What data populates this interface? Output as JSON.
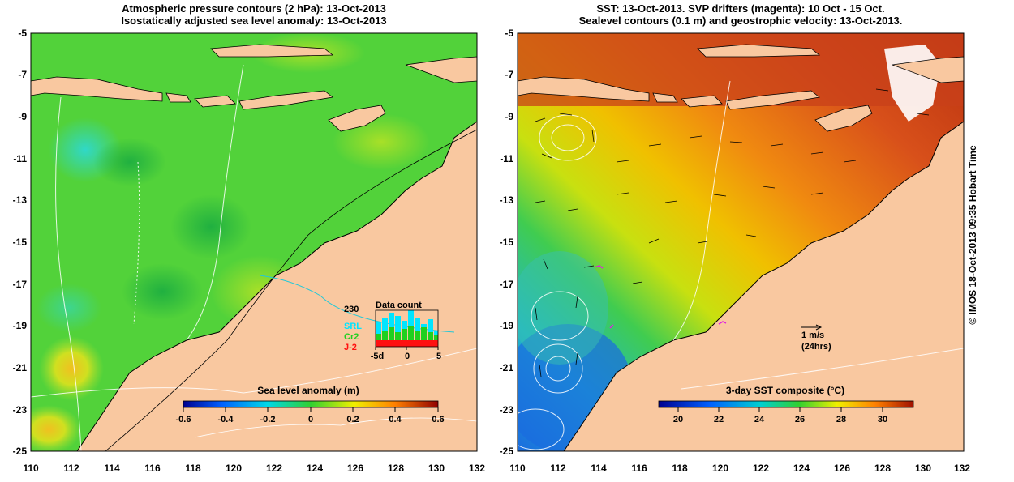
{
  "left_panel": {
    "title_line1": "Atmospheric pressure contours (2 hPa): 13-Oct-2013",
    "title_line2": "Isostatically adjusted sea level anomaly: 13-Oct-2013",
    "colorbar_title": "Sea level anomaly (m)",
    "colorbar_ticks": [
      "-0.6",
      "-0.4",
      "-0.2",
      "0",
      "0.2",
      "0.4",
      "0.6"
    ],
    "inset": {
      "title": "Data count",
      "max_label": "230",
      "satellites": [
        {
          "name": "SRL",
          "color": "#00e5ff"
        },
        {
          "name": "Cr2",
          "color": "#1fd01f"
        },
        {
          "name": "J-2",
          "color": "#ff1010"
        }
      ],
      "xticks": [
        "-5d",
        "0",
        "5"
      ]
    }
  },
  "right_panel": {
    "title_line1": "SST: 13-Oct-2013. SVP drifters (magenta): 10 Oct - 15 Oct.",
    "title_line2": "Sealevel contours (0.1 m) and geostrophic velocity: 13-Oct-2013.",
    "colorbar_title": "3-day SST composite (°C)",
    "colorbar_ticks": [
      "20",
      "22",
      "24",
      "26",
      "28",
      "30"
    ],
    "scale_label_1": "1 m/s",
    "scale_label_2": "(24hrs)"
  },
  "axes": {
    "y_ticks": [
      "-5",
      "-7",
      "-9",
      "-11",
      "-13",
      "-15",
      "-17",
      "-19",
      "-21",
      "-23",
      "-25"
    ],
    "x_ticks": [
      "110",
      "112",
      "114",
      "116",
      "118",
      "120",
      "122",
      "124",
      "126",
      "128",
      "130",
      "132"
    ]
  },
  "credit": "© IMOS 18-Oct-2013 09:35 Hobart Time",
  "colors": {
    "land": "#f9c8a0",
    "sla_ocean": "#52d23a",
    "sst_ocean_warm": "#d8501a",
    "sst_ocean_cool": "#2aa5d8"
  }
}
